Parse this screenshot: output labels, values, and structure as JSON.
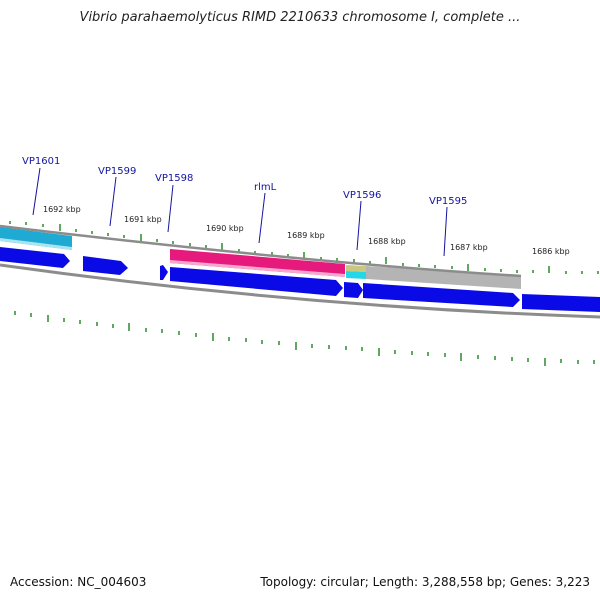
{
  "title": "Vibrio parahaemolyticus RIMD 2210633 chromosome I, complete ...",
  "accession": "Accession: NC_004603",
  "topology": "Topology: circular; Length: 3,288,558 bp; Genes: 3,223",
  "colors": {
    "cds": "#0a0ae6",
    "rrna": "#1eaad2",
    "rlml": "#e6197d",
    "grey_feature": "#b4b4b4",
    "backbone": "#8c8c8c",
    "tick": "#2a8a2a",
    "gene_label": "#1414a0"
  },
  "kbp_ticks": [
    "1692 kbp",
    "1691 kbp",
    "1690 kbp",
    "1689 kbp",
    "1688 kbp",
    "1687 kbp",
    "1686 kbp"
  ],
  "gene_labels": [
    "VP1601",
    "VP1599",
    "VP1598",
    "rlmL",
    "VP1596",
    "VP1595"
  ]
}
